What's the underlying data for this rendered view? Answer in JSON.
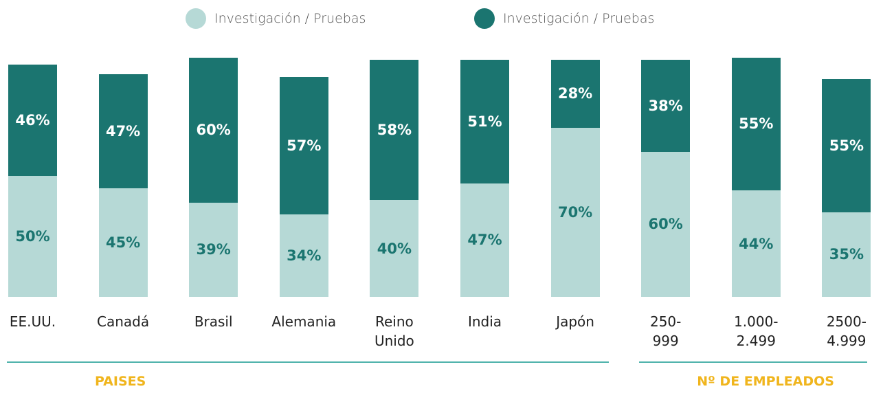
{
  "chart_data": {
    "type": "stacked_bar",
    "categories": [
      "EE.UU.",
      "Canadá",
      "Brasil",
      "Alemania",
      "Reino Unido",
      "India",
      "Japón",
      "250-999",
      "1.000-2.499",
      "2500-4.999"
    ],
    "series": [
      {
        "name": "Investigación / Pruebas",
        "color": "#b6d9d6",
        "values": [
          50,
          45,
          39,
          34,
          40,
          47,
          70,
          60,
          44,
          35
        ],
        "value_labels": [
          "50%",
          "45%",
          "39%",
          "34%",
          "40%",
          "47%",
          "70%",
          "60%",
          "44%",
          "35%"
        ]
      },
      {
        "name": "Investigación / Pruebas",
        "color": "#1b7570",
        "values": [
          46,
          47,
          60,
          57,
          58,
          51,
          28,
          38,
          55,
          55
        ],
        "value_labels": [
          "46%",
          "47%",
          "60%",
          "57%",
          "58%",
          "51%",
          "28%",
          "38%",
          "55%",
          "55%"
        ]
      }
    ],
    "groups": [
      "PAISES",
      "Nº DE EMPLEADOS"
    ]
  }
}
